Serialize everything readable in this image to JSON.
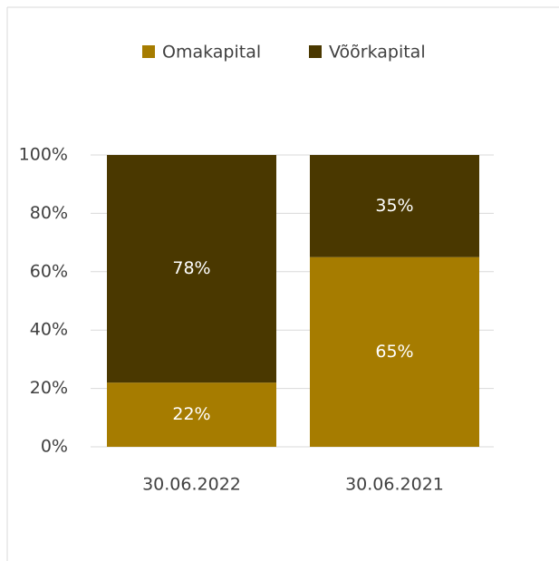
{
  "chart_data": {
    "type": "bar",
    "stacked": true,
    "categories": [
      "30.06.2022",
      "30.06.2021"
    ],
    "series": [
      {
        "name": "Omakapital",
        "color": "#a67c00",
        "values": [
          22,
          65
        ],
        "value_labels": [
          "22%",
          "65%"
        ]
      },
      {
        "name": "Võõrkapital",
        "color": "#4a3800",
        "values": [
          78,
          35
        ],
        "value_labels": [
          "78%",
          "35%"
        ]
      }
    ],
    "ylim": [
      0,
      100
    ],
    "yticks": [
      {
        "value": 0,
        "label": "0%"
      },
      {
        "value": 20,
        "label": "20%"
      },
      {
        "value": 40,
        "label": "40%"
      },
      {
        "value": 60,
        "label": "60%"
      },
      {
        "value": 80,
        "label": "80%"
      },
      {
        "value": 100,
        "label": "100%"
      }
    ],
    "grid": true,
    "legend": "top"
  }
}
